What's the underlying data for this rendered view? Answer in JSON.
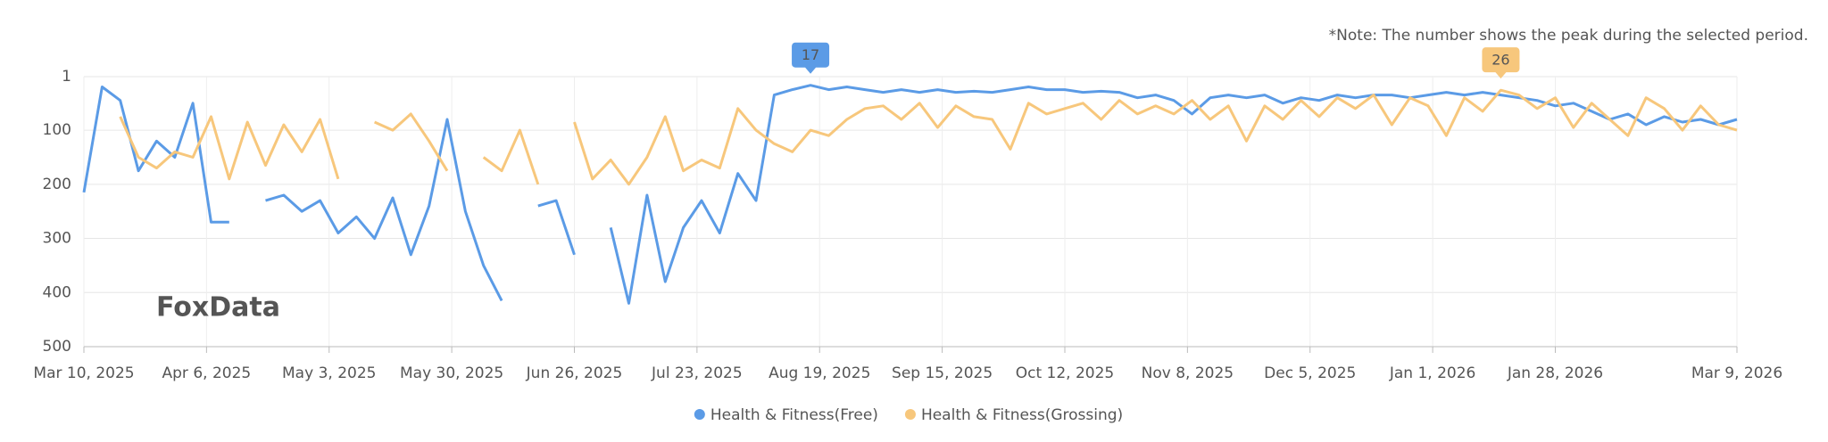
{
  "chart_data": {
    "type": "line",
    "note": "*Note: The number shows the peak during the selected period.",
    "watermark": "FoxData",
    "x": [
      "2025-03-10",
      "2025-03-14",
      "2025-03-18",
      "2025-03-22",
      "2025-03-26",
      "2025-03-30",
      "2025-04-03",
      "2025-04-07",
      "2025-04-11",
      "2025-04-15",
      "2025-04-19",
      "2025-04-23",
      "2025-04-27",
      "2025-05-01",
      "2025-05-05",
      "2025-05-09",
      "2025-05-13",
      "2025-05-17",
      "2025-05-21",
      "2025-05-25",
      "2025-05-29",
      "2025-06-02",
      "2025-06-06",
      "2025-06-10",
      "2025-06-14",
      "2025-06-18",
      "2025-06-22",
      "2025-06-26",
      "2025-06-30",
      "2025-07-04",
      "2025-07-08",
      "2025-07-12",
      "2025-07-16",
      "2025-07-20",
      "2025-07-24",
      "2025-07-28",
      "2025-08-01",
      "2025-08-05",
      "2025-08-09",
      "2025-08-13",
      "2025-08-17",
      "2025-08-21",
      "2025-08-25",
      "2025-08-29",
      "2025-09-02",
      "2025-09-06",
      "2025-09-10",
      "2025-09-14",
      "2025-09-18",
      "2025-09-22",
      "2025-09-26",
      "2025-09-30",
      "2025-10-04",
      "2025-10-08",
      "2025-10-12",
      "2025-10-16",
      "2025-10-20",
      "2025-10-24",
      "2025-10-28",
      "2025-11-01",
      "2025-11-05",
      "2025-11-09",
      "2025-11-13",
      "2025-11-17",
      "2025-11-21",
      "2025-11-25",
      "2025-11-29",
      "2025-12-03",
      "2025-12-07",
      "2025-12-11",
      "2025-12-15",
      "2025-12-19",
      "2025-12-23",
      "2025-12-27",
      "2025-12-31",
      "2026-01-04",
      "2026-01-08",
      "2026-01-12",
      "2026-01-16",
      "2026-01-20",
      "2026-01-24",
      "2026-01-28",
      "2026-02-01",
      "2026-02-05",
      "2026-02-09",
      "2026-02-13",
      "2026-02-17",
      "2026-02-21",
      "2026-02-25",
      "2026-03-01",
      "2026-03-05",
      "2026-03-09"
    ],
    "series": [
      {
        "name": "Health & Fitness(Free)",
        "color": "#5b9be6",
        "values": [
          215,
          20,
          45,
          175,
          120,
          150,
          50,
          270,
          270,
          null,
          230,
          220,
          250,
          230,
          290,
          260,
          300,
          225,
          330,
          240,
          80,
          250,
          350,
          415,
          null,
          240,
          230,
          330,
          null,
          280,
          420,
          220,
          380,
          280,
          230,
          290,
          180,
          230,
          35,
          25,
          17,
          25,
          20,
          25,
          30,
          25,
          30,
          25,
          30,
          28,
          30,
          25,
          20,
          25,
          25,
          30,
          28,
          30,
          40,
          35,
          45,
          70,
          40,
          35,
          40,
          35,
          50,
          40,
          45,
          35,
          40,
          35,
          35,
          40,
          35,
          30,
          35,
          30,
          35,
          40,
          45,
          55,
          50,
          65,
          80,
          70,
          90,
          75,
          85,
          80,
          90,
          80
        ]
      },
      {
        "name": "Health & Fitness(Grossing)",
        "color": "#f7c77c",
        "values": [
          null,
          null,
          75,
          150,
          170,
          140,
          150,
          75,
          190,
          85,
          165,
          90,
          140,
          80,
          190,
          null,
          85,
          100,
          70,
          120,
          175,
          null,
          150,
          175,
          100,
          200,
          null,
          85,
          190,
          155,
          200,
          150,
          75,
          175,
          155,
          170,
          60,
          100,
          125,
          140,
          100,
          110,
          80,
          60,
          55,
          80,
          50,
          95,
          55,
          75,
          80,
          135,
          50,
          70,
          60,
          50,
          80,
          45,
          70,
          55,
          70,
          45,
          80,
          55,
          120,
          55,
          80,
          45,
          75,
          40,
          60,
          35,
          90,
          40,
          55,
          110,
          40,
          65,
          26,
          35,
          60,
          40,
          95,
          50,
          80,
          110,
          40,
          60,
          100,
          55,
          90,
          100
        ]
      }
    ],
    "xlim": [
      "2025-03-10",
      "2026-03-09"
    ],
    "xticks": [
      {
        "value": "2025-03-10",
        "label": "Mar 10, 2025"
      },
      {
        "value": "2025-04-06",
        "label": "Apr 6, 2025"
      },
      {
        "value": "2025-05-03",
        "label": "May 3, 2025"
      },
      {
        "value": "2025-05-30",
        "label": "May 30, 2025"
      },
      {
        "value": "2025-06-26",
        "label": "Jun 26, 2025"
      },
      {
        "value": "2025-07-23",
        "label": "Jul 23, 2025"
      },
      {
        "value": "2025-08-19",
        "label": "Aug 19, 2025"
      },
      {
        "value": "2025-09-15",
        "label": "Sep 15, 2025"
      },
      {
        "value": "2025-10-12",
        "label": "Oct 12, 2025"
      },
      {
        "value": "2025-11-08",
        "label": "Nov 8, 2025"
      },
      {
        "value": "2025-12-05",
        "label": "Dec 5, 2025"
      },
      {
        "value": "2026-01-01",
        "label": "Jan 1, 2026"
      },
      {
        "value": "2026-01-28",
        "label": "Jan 28, 2026"
      },
      {
        "value": "2026-03-09",
        "label": "Mar 9, 2026"
      }
    ],
    "ylim": [
      1,
      500
    ],
    "y_inverted": true,
    "yticks": [
      1,
      100,
      200,
      300,
      400,
      500
    ],
    "grid": true,
    "legend": "bottom"
  }
}
